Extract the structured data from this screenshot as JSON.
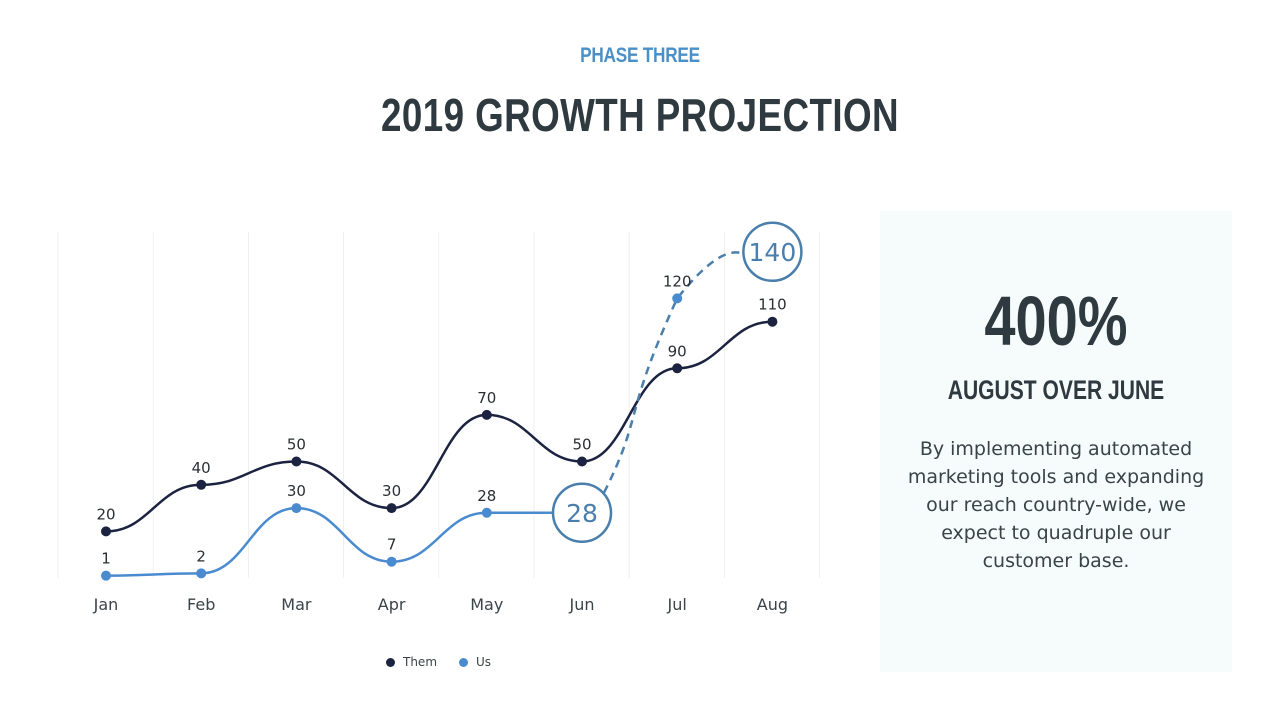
{
  "header": {
    "eyebrow": "PHASE THREE",
    "title": "2019 GROWTH PROJECTION"
  },
  "panel": {
    "stat": "400%",
    "stat_label": "AUGUST OVER JUNE",
    "description": "By implementing automated marketing tools and expanding our reach country-wide, we expect to quadruple our customer base."
  },
  "chart_data": {
    "type": "line",
    "categories": [
      "Jan",
      "Feb",
      "Mar",
      "Apr",
      "May",
      "Jun",
      "Jul",
      "Aug"
    ],
    "series": [
      {
        "name": "Them",
        "color": "#1b2340",
        "values": [
          20,
          40,
          50,
          30,
          70,
          50,
          90,
          110
        ],
        "labels": [
          "20",
          "40",
          "50",
          "30",
          "70",
          "50",
          "90",
          "110"
        ]
      },
      {
        "name": "Us",
        "color": "#4a8bd0",
        "values": [
          1,
          2,
          30,
          7,
          28,
          28,
          120,
          140
        ],
        "labels": [
          "1",
          "2",
          "30",
          "7",
          "28",
          "28",
          "120",
          "140"
        ],
        "solid_until_index": 5,
        "highlight_indices": [
          5,
          7
        ]
      }
    ],
    "ylim": [
      0,
      150
    ],
    "grid": "vertical",
    "legend": "bottom-center",
    "highlight_color": "#4a7eab"
  }
}
